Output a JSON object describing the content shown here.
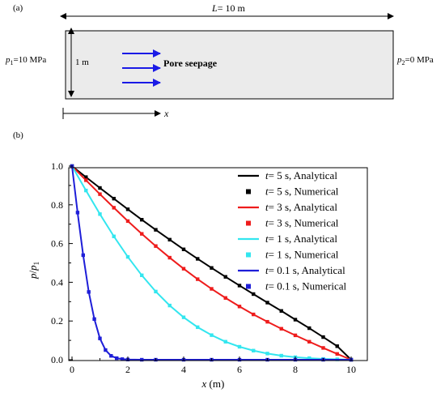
{
  "panel_a": {
    "label": "(a)",
    "length_label_var": "L",
    "length_label_rest": "= 10 m",
    "height_label": "1 m",
    "p1_var": "p",
    "p1_sub": "1",
    "p1_rest": "=10 MPa",
    "p2_var": "p",
    "p2_sub": "2",
    "p2_rest": "=0 MPa",
    "seepage_label": "Pore  seepage",
    "x_axis_label": "x",
    "colors": {
      "domain_fill": "#ebebeb",
      "arrows": "#1a1ae6"
    }
  },
  "panel_b": {
    "label": "(b)"
  },
  "chart_data": {
    "type": "line",
    "xlabel_var": "x",
    "xlabel_unit": " (m)",
    "ylabel_var": "p",
    "ylabel_den": "p",
    "ylabel_sub": "1",
    "xlim": [
      0,
      10
    ],
    "ylim": [
      0,
      1.0
    ],
    "x_ticks": [
      "0",
      "2",
      "4",
      "6",
      "8",
      "10"
    ],
    "y_ticks": [
      "0.0",
      "0.2",
      "0.4",
      "0.6",
      "0.8",
      "1.0"
    ],
    "grid": false,
    "legend_placement": "top-right",
    "series": [
      {
        "name_t": "t",
        "name_rest": "= 5 s, Analytical",
        "name_num": "= 5 s, Numerical",
        "color": "#000000",
        "x": [
          0,
          0.5,
          1,
          1.5,
          2,
          2.5,
          3,
          3.5,
          4,
          4.5,
          5,
          5.5,
          6,
          6.5,
          7,
          7.5,
          8,
          8.5,
          9,
          9.5,
          10
        ],
        "analytical": [
          1.0,
          0.943,
          0.887,
          0.832,
          0.777,
          0.723,
          0.671,
          0.62,
          0.57,
          0.521,
          0.474,
          0.428,
          0.383,
          0.339,
          0.295,
          0.252,
          0.207,
          0.163,
          0.117,
          0.07,
          0.0
        ],
        "numerical": [
          1.0,
          0.943,
          0.887,
          0.832,
          0.777,
          0.723,
          0.671,
          0.62,
          0.57,
          0.521,
          0.474,
          0.428,
          0.383,
          0.339,
          0.295,
          0.252,
          0.207,
          0.163,
          0.117,
          0.07,
          0.0
        ]
      },
      {
        "name_t": "t",
        "name_rest": "= 3 s, Analytical",
        "name_num": "= 3 s, Numerical",
        "color": "#ee1c1c",
        "x": [
          0,
          0.5,
          1,
          1.5,
          2,
          2.5,
          3,
          3.5,
          4,
          4.5,
          5,
          5.5,
          6,
          6.5,
          7,
          7.5,
          8,
          8.5,
          9,
          9.5,
          10
        ],
        "analytical": [
          1.0,
          0.927,
          0.855,
          0.785,
          0.716,
          0.65,
          0.587,
          0.527,
          0.47,
          0.416,
          0.366,
          0.319,
          0.275,
          0.234,
          0.196,
          0.16,
          0.126,
          0.093,
          0.061,
          0.03,
          0.0
        ],
        "numerical": [
          1.0,
          0.927,
          0.855,
          0.785,
          0.716,
          0.65,
          0.587,
          0.527,
          0.47,
          0.416,
          0.366,
          0.319,
          0.275,
          0.234,
          0.196,
          0.16,
          0.126,
          0.093,
          0.061,
          0.03,
          0.0
        ]
      },
      {
        "name_t": "t",
        "name_rest": "= 1 s, Analytical",
        "name_num": "= 1 s, Numerical",
        "color": "#33e6ef",
        "x": [
          0,
          0.5,
          1,
          1.5,
          2,
          2.5,
          3,
          3.5,
          4,
          4.5,
          5,
          5.5,
          6,
          6.5,
          7,
          7.5,
          8,
          8.5,
          9,
          9.5,
          10
        ],
        "analytical": [
          1.0,
          0.874,
          0.752,
          0.637,
          0.531,
          0.436,
          0.352,
          0.28,
          0.219,
          0.168,
          0.127,
          0.093,
          0.067,
          0.047,
          0.032,
          0.021,
          0.013,
          0.008,
          0.004,
          0.002,
          0.0
        ],
        "numerical": [
          1.0,
          0.874,
          0.752,
          0.637,
          0.531,
          0.436,
          0.352,
          0.28,
          0.219,
          0.168,
          0.127,
          0.093,
          0.067,
          0.047,
          0.032,
          0.021,
          0.013,
          0.008,
          0.004,
          0.002,
          0.0
        ]
      },
      {
        "name_t": "t",
        "name_rest": "= 0.1 s, Analytical",
        "name_num": "= 0.1 s, Numerical",
        "color": "#1e1ed8",
        "x": [
          0,
          0.2,
          0.4,
          0.6,
          0.8,
          1.0,
          1.2,
          1.4,
          1.6,
          1.8,
          2.0,
          2.5,
          3,
          4,
          5,
          6,
          7,
          8,
          9,
          10
        ],
        "analytical": [
          1.0,
          0.76,
          0.54,
          0.35,
          0.21,
          0.11,
          0.05,
          0.02,
          0.008,
          0.003,
          0.001,
          0.0,
          0.0,
          0.0,
          0.0,
          0.0,
          0.0,
          0.0,
          0.0,
          0.0
        ],
        "numerical": [
          1.0,
          0.76,
          0.54,
          0.35,
          0.21,
          0.11,
          0.05,
          0.02,
          0.008,
          0.003,
          0.001,
          0.0,
          0.0,
          0.0,
          0.0,
          0.0,
          0.0,
          0.0,
          0.0,
          0.0
        ]
      }
    ]
  }
}
